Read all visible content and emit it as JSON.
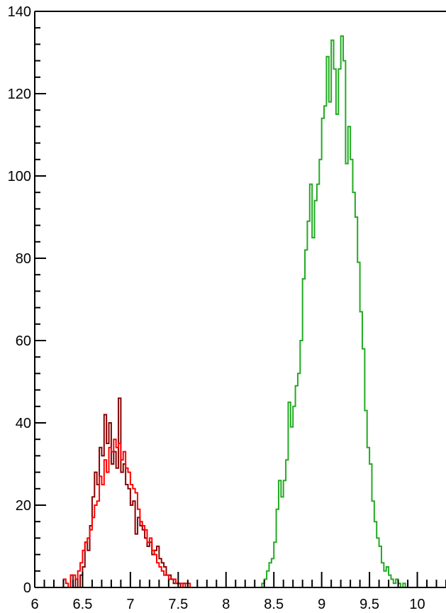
{
  "chart_data": {
    "type": "histogram-step",
    "xlim": [
      6,
      10.3
    ],
    "ylim": [
      0,
      140
    ],
    "x_tick_labels": [
      "6",
      "6.5",
      "7",
      "7.5",
      "8",
      "8.5",
      "9",
      "9.5",
      "10"
    ],
    "y_tick_labels": [
      "0",
      "20",
      "40",
      "60",
      "80",
      "100",
      "120",
      "140"
    ],
    "x_ticks": [
      6,
      6.5,
      7,
      7.5,
      8,
      8.5,
      9,
      9.5,
      10
    ],
    "y_ticks": [
      0,
      20,
      40,
      60,
      80,
      100,
      120,
      140
    ],
    "bin_width": 0.025,
    "grid": false,
    "series": [
      {
        "color": "#8b0000",
        "x_start": 6.35,
        "values": [
          0,
          3,
          0,
          2,
          0,
          3,
          5,
          11,
          9,
          15,
          22,
          28,
          25,
          34,
          32,
          42,
          35,
          40,
          30,
          33,
          29,
          46,
          28,
          30,
          25,
          24,
          20,
          21,
          13,
          17,
          15,
          14,
          12,
          10,
          11,
          8,
          9,
          10,
          7,
          6,
          5,
          3,
          3,
          2,
          1,
          1,
          1,
          0,
          1,
          0
        ]
      },
      {
        "color": "#ff0000",
        "x_start": 6.3,
        "values": [
          2,
          1,
          0,
          3,
          3,
          2,
          4,
          6,
          9,
          11,
          12,
          14,
          17,
          20,
          21,
          27,
          25,
          31,
          28,
          34,
          33,
          36,
          34,
          35,
          31,
          33,
          29,
          28,
          25,
          24,
          23,
          19,
          16,
          15,
          14,
          11,
          12,
          9,
          8,
          6,
          5,
          4,
          3,
          3,
          2,
          2,
          2,
          1,
          1,
          1,
          0,
          1,
          1,
          0
        ]
      },
      {
        "color": "#22aa22",
        "x_start": 8.25,
        "values": [
          0,
          0,
          0,
          0,
          0,
          1,
          2,
          4,
          6,
          7,
          11,
          19,
          26,
          22,
          26,
          31,
          45,
          39,
          44,
          49,
          52,
          60,
          75,
          82,
          89,
          98,
          85,
          94,
          98,
          104,
          114,
          117,
          129,
          118,
          133,
          126,
          115,
          126,
          134,
          128,
          103,
          112,
          104,
          96,
          90,
          79,
          67,
          58,
          43,
          34,
          30,
          21,
          16,
          12,
          10,
          6,
          4,
          5,
          3,
          2,
          1,
          2,
          1,
          0,
          1,
          0
        ]
      }
    ]
  }
}
